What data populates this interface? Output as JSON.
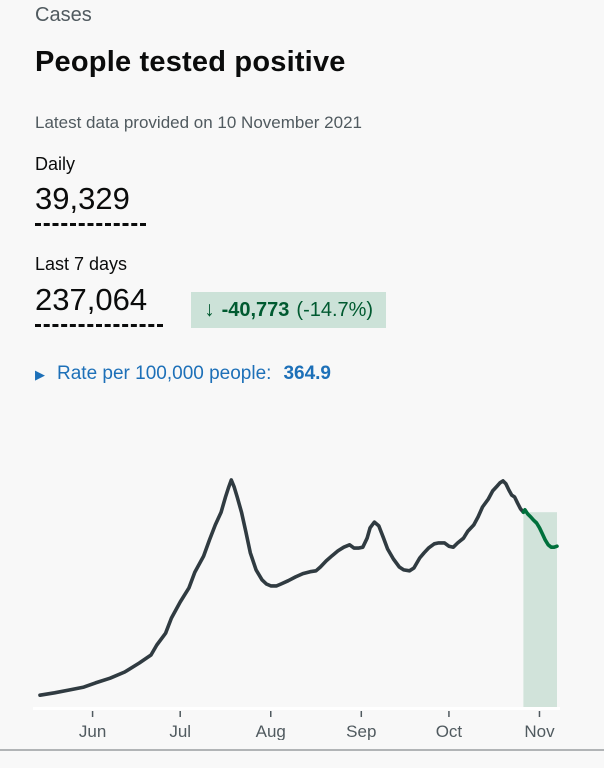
{
  "header": {
    "category": "Cases",
    "title": "People tested positive",
    "updated": "Latest data provided on 10 November 2021"
  },
  "daily": {
    "label": "Daily",
    "value": "39,329"
  },
  "last7": {
    "label": "Last 7 days",
    "value": "237,064",
    "change": {
      "arrow": "↓",
      "delta": "-40,773",
      "percent": "(-14.7%)"
    }
  },
  "rate": {
    "icon": "▶",
    "label": "Rate per 100,000 people:",
    "value": "364.9"
  },
  "colors": {
    "background": "#f8f8f8",
    "text_primary": "#0b0c0c",
    "text_secondary": "#505a5f",
    "accent_blue": "#1d70b8",
    "badge_bg": "#cce2d8",
    "badge_text": "#005a30",
    "line": "#303b41",
    "highlight_line": "#00703c",
    "highlight_fill": "#d1e3da",
    "axis_line": "#ffffff",
    "divider": "#b1b4b6"
  },
  "chart_data": {
    "type": "line",
    "title": "",
    "xlabel": "",
    "ylabel": "",
    "y_axis_visible": false,
    "grid": false,
    "legend": "none",
    "x_tick_labels": [
      "Jun",
      "Jul",
      "Aug",
      "Sep",
      "Oct",
      "Nov"
    ],
    "x_ticks_day": [
      18,
      48,
      79,
      110,
      140,
      171
    ],
    "day_range": [
      0,
      177
    ],
    "value_max_estimate": 48000,
    "highlight_start_day": 165.5,
    "points": [
      [
        0,
        2500
      ],
      [
        5,
        3000
      ],
      [
        10,
        3600
      ],
      [
        15,
        4200
      ],
      [
        19,
        5100
      ],
      [
        24,
        6100
      ],
      [
        29,
        7400
      ],
      [
        34,
        9300
      ],
      [
        38,
        11000
      ],
      [
        40,
        13100
      ],
      [
        43,
        15600
      ],
      [
        45,
        18800
      ],
      [
        48,
        22200
      ],
      [
        51,
        25200
      ],
      [
        53,
        28500
      ],
      [
        56,
        31900
      ],
      [
        58,
        35300
      ],
      [
        60,
        38500
      ],
      [
        62,
        41200
      ],
      [
        63.5,
        44400
      ],
      [
        64.5,
        46300
      ],
      [
        65.5,
        48000
      ],
      [
        66.5,
        46500
      ],
      [
        67.5,
        44400
      ],
      [
        69,
        41200
      ],
      [
        70.5,
        37000
      ],
      [
        72,
        32600
      ],
      [
        74,
        29000
      ],
      [
        76,
        26900
      ],
      [
        77.5,
        26000
      ],
      [
        79,
        25600
      ],
      [
        81,
        25600
      ],
      [
        82.5,
        26000
      ],
      [
        85,
        26700
      ],
      [
        87.5,
        27500
      ],
      [
        90,
        28200
      ],
      [
        92.5,
        28600
      ],
      [
        94.5,
        28800
      ],
      [
        96,
        29600
      ],
      [
        98,
        30900
      ],
      [
        100,
        32000
      ],
      [
        102,
        33000
      ],
      [
        104,
        33800
      ],
      [
        106,
        34300
      ],
      [
        107.5,
        33600
      ],
      [
        109,
        33600
      ],
      [
        110.5,
        33800
      ],
      [
        112,
        35700
      ],
      [
        113,
        37900
      ],
      [
        114.5,
        39100
      ],
      [
        116,
        38300
      ],
      [
        117.5,
        35900
      ],
      [
        119,
        33400
      ],
      [
        121,
        31300
      ],
      [
        123,
        29600
      ],
      [
        124.5,
        29000
      ],
      [
        126.5,
        28800
      ],
      [
        128,
        29400
      ],
      [
        130,
        31500
      ],
      [
        131.5,
        32600
      ],
      [
        133,
        33600
      ],
      [
        135,
        34500
      ],
      [
        136.5,
        34700
      ],
      [
        138.5,
        34700
      ],
      [
        140,
        34000
      ],
      [
        141.5,
        33800
      ],
      [
        143,
        34700
      ],
      [
        145,
        35700
      ],
      [
        146.5,
        37200
      ],
      [
        148.5,
        38500
      ],
      [
        150,
        40200
      ],
      [
        151.5,
        42300
      ],
      [
        153.5,
        44000
      ],
      [
        155,
        45700
      ],
      [
        156.5,
        46700
      ],
      [
        157.5,
        47400
      ],
      [
        158.5,
        47800
      ],
      [
        159.5,
        47200
      ],
      [
        160.5,
        45900
      ],
      [
        161.5,
        44800
      ],
      [
        162.5,
        44400
      ],
      [
        163.5,
        43100
      ],
      [
        164.5,
        41900
      ],
      [
        165.5,
        41200
      ],
      [
        166,
        41700
      ],
      [
        167,
        40800
      ],
      [
        168,
        40200
      ],
      [
        169,
        39500
      ],
      [
        170,
        38900
      ],
      [
        171,
        37900
      ],
      [
        172,
        36600
      ],
      [
        173,
        35300
      ],
      [
        174,
        34300
      ],
      [
        175,
        33800
      ],
      [
        176,
        33800
      ],
      [
        177,
        34000
      ]
    ]
  }
}
